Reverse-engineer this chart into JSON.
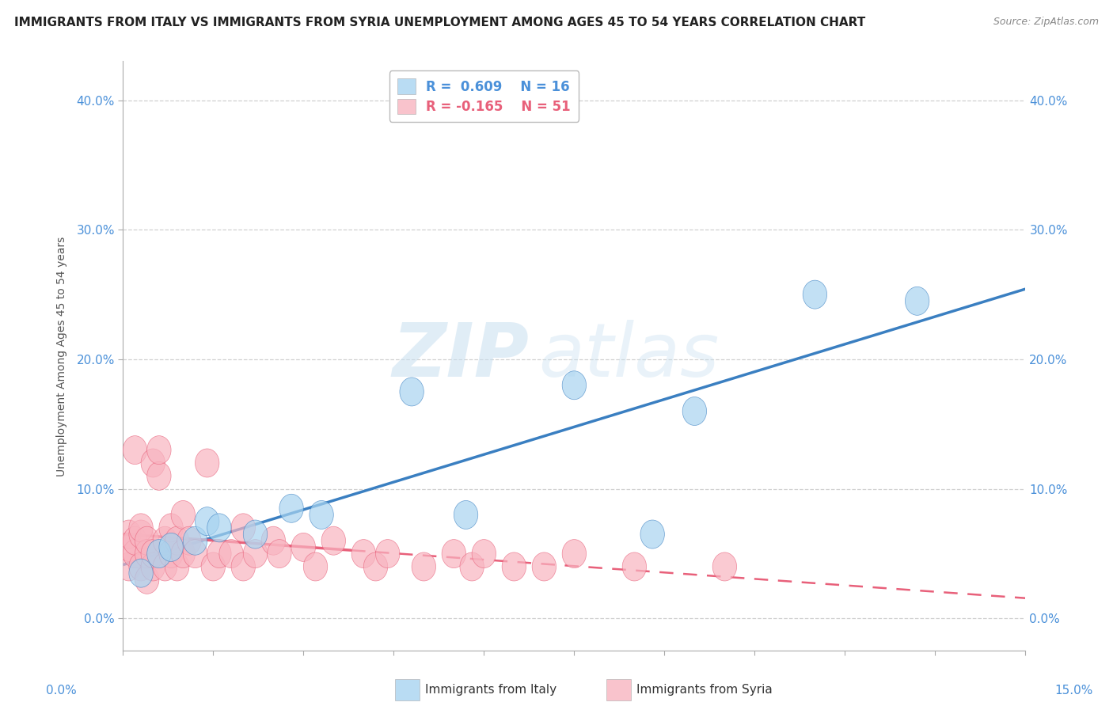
{
  "title": "IMMIGRANTS FROM ITALY VS IMMIGRANTS FROM SYRIA UNEMPLOYMENT AMONG AGES 45 TO 54 YEARS CORRELATION CHART",
  "source": "Source: ZipAtlas.com",
  "ylabel": "Unemployment Among Ages 45 to 54 years",
  "xlim": [
    0.0,
    0.15
  ],
  "ylim": [
    -0.025,
    0.43
  ],
  "yticks": [
    0.0,
    0.1,
    0.2,
    0.3,
    0.4
  ],
  "yticklabels": [
    "0.0%",
    "10.0%",
    "20.0%",
    "30.0%",
    "40.0%"
  ],
  "italy_color": "#a8d4f0",
  "italy_line_color": "#3a7fc1",
  "syria_color": "#f8b4c0",
  "syria_line_color": "#e8607a",
  "italy_R": "0.609",
  "italy_N": "16",
  "syria_R": "-0.165",
  "syria_N": "51",
  "watermark_zip": "ZIP",
  "watermark_atlas": "atlas",
  "italy_x": [
    0.003,
    0.006,
    0.008,
    0.012,
    0.014,
    0.016,
    0.022,
    0.028,
    0.033,
    0.048,
    0.057,
    0.075,
    0.088,
    0.095,
    0.115,
    0.132
  ],
  "italy_y": [
    0.035,
    0.05,
    0.055,
    0.06,
    0.075,
    0.07,
    0.065,
    0.085,
    0.08,
    0.175,
    0.08,
    0.18,
    0.065,
    0.16,
    0.25,
    0.245
  ],
  "syria_x": [
    0.001,
    0.001,
    0.001,
    0.002,
    0.002,
    0.002,
    0.003,
    0.003,
    0.003,
    0.004,
    0.004,
    0.004,
    0.005,
    0.005,
    0.005,
    0.006,
    0.006,
    0.007,
    0.007,
    0.008,
    0.008,
    0.009,
    0.009,
    0.01,
    0.01,
    0.011,
    0.012,
    0.014,
    0.015,
    0.016,
    0.018,
    0.02,
    0.02,
    0.022,
    0.025,
    0.026,
    0.03,
    0.032,
    0.035,
    0.04,
    0.042,
    0.044,
    0.05,
    0.055,
    0.058,
    0.06,
    0.065,
    0.07,
    0.075,
    0.085,
    0.1
  ],
  "syria_y": [
    0.04,
    0.055,
    0.065,
    0.05,
    0.13,
    0.06,
    0.04,
    0.065,
    0.07,
    0.03,
    0.05,
    0.06,
    0.04,
    0.05,
    0.12,
    0.11,
    0.13,
    0.04,
    0.06,
    0.05,
    0.07,
    0.04,
    0.06,
    0.05,
    0.08,
    0.06,
    0.05,
    0.12,
    0.04,
    0.05,
    0.05,
    0.07,
    0.04,
    0.05,
    0.06,
    0.05,
    0.055,
    0.04,
    0.06,
    0.05,
    0.04,
    0.05,
    0.04,
    0.05,
    0.04,
    0.05,
    0.04,
    0.04,
    0.05,
    0.04,
    0.04
  ],
  "background_color": "#ffffff",
  "grid_color": "#d0d0d0",
  "tick_fontsize": 11,
  "legend_fontsize": 12
}
